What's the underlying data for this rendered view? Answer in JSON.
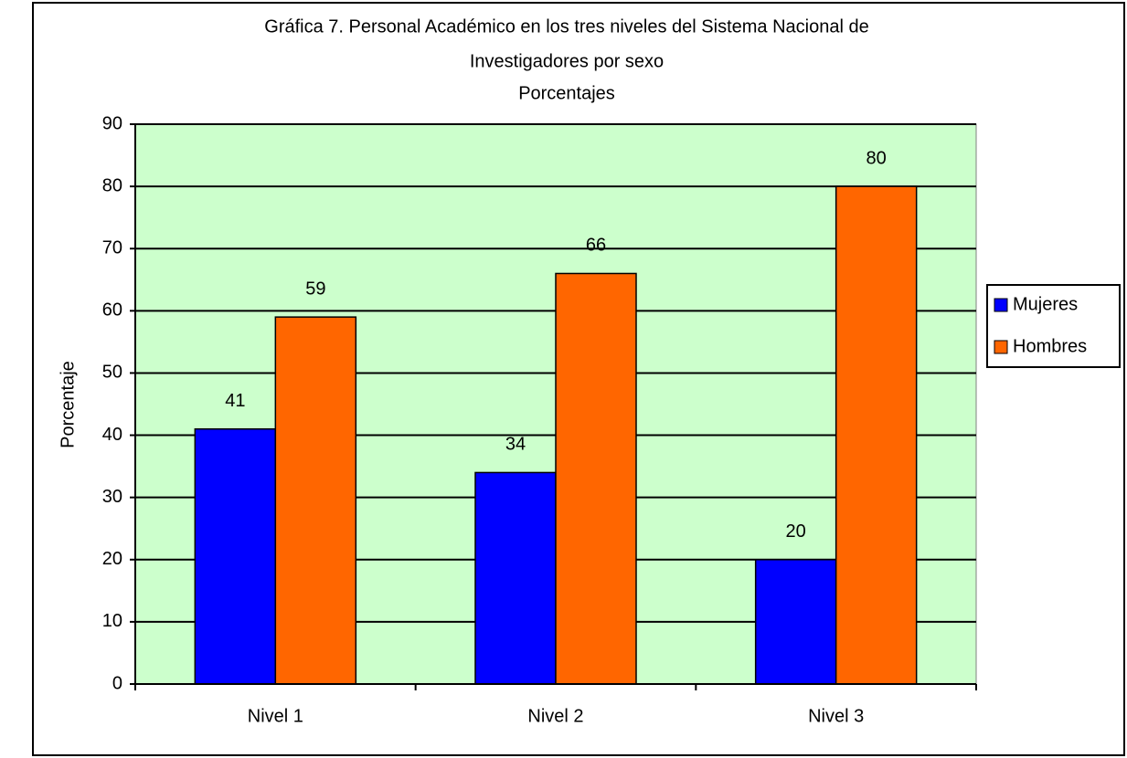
{
  "chart_data": {
    "type": "bar",
    "title": [
      "Gráfica 7. Personal Académico en los tres niveles del Sistema Nacional de",
      "Investigadores por sexo"
    ],
    "subtitle": "Porcentajes",
    "y_label": "Porcentaje",
    "categories": [
      "Nivel 1",
      "Nivel 2",
      "Nivel 3"
    ],
    "series": [
      {
        "name": "Mujeres",
        "color": "#0000ff",
        "values": [
          41,
          34,
          20
        ]
      },
      {
        "name": "Hombres",
        "color": "#ff6600",
        "values": [
          59,
          66,
          80
        ]
      }
    ],
    "ylim": [
      0,
      90
    ],
    "yticks": [
      0,
      10,
      20,
      30,
      40,
      50,
      60,
      70,
      80,
      90
    ],
    "grid": true,
    "legend": "right",
    "plot_background": "#ccffcc"
  }
}
